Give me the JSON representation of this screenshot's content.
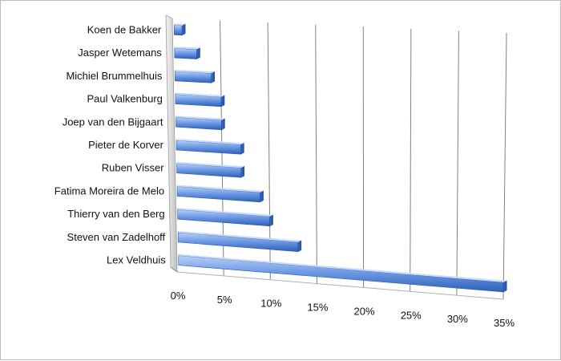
{
  "chart_data": {
    "type": "bar",
    "orientation": "horizontal",
    "style": "3d-perspective",
    "categories": [
      "Koen de Bakker",
      "Jasper Wetemans",
      "Michiel Brummelhuis",
      "Paul Valkenburg",
      "Joep van den Bijgaart",
      "Pieter de Korver",
      "Ruben Visser",
      "Fatima Moreira de Melo",
      "Thierry van den Berg",
      "Steven van Zadelhoff",
      "Lex Veldhuis"
    ],
    "values": [
      1,
      2.5,
      4,
      5,
      5,
      7,
      7,
      9,
      10,
      13,
      35
    ],
    "value_unit": "%",
    "xlim": [
      0,
      35
    ],
    "x_ticks": [
      "0%",
      "5%",
      "10%",
      "15%",
      "20%",
      "25%",
      "30%",
      "35%"
    ],
    "title": "",
    "xlabel": "",
    "ylabel": "",
    "grid": true,
    "legend": "none",
    "colors": {
      "bar_main": "#4f81d9",
      "bar_light": "#a9c4f5",
      "bar_dark": "#2d5fb5",
      "grid": "#7f7f7f",
      "wall": "#d9d9d9"
    }
  }
}
